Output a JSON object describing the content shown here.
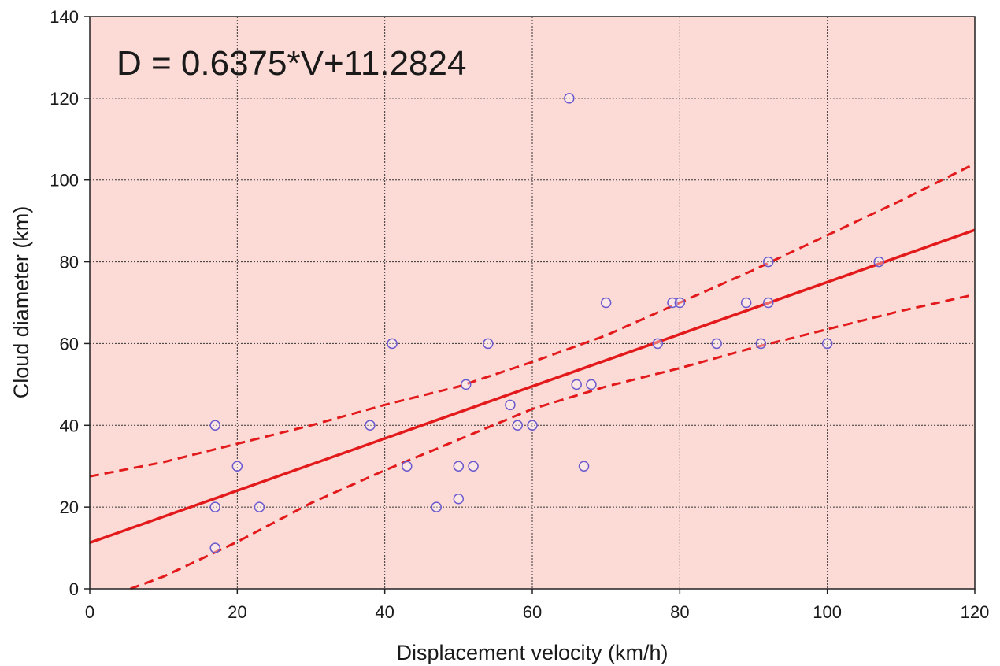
{
  "chart_data": {
    "type": "scatter",
    "title": "",
    "annotation": "D = 0.6375*V+11.2824",
    "xlabel": "Displacement velocity (km/h)",
    "ylabel": "Cloud diameter (km)",
    "xlim": [
      0,
      120
    ],
    "ylim": [
      0,
      140
    ],
    "xticks": [
      "0",
      "20",
      "40",
      "60",
      "80",
      "100",
      "120"
    ],
    "yticks": [
      "0",
      "20",
      "40",
      "60",
      "80",
      "100",
      "120",
      "140"
    ],
    "grid": true,
    "legend": "none",
    "colors": {
      "plot_background": "#fcdbd6",
      "regression_line": "#e31a1c",
      "marker_stroke": "#6a5acd",
      "grid": "#333333"
    },
    "points": [
      {
        "x": 17,
        "y": 40
      },
      {
        "x": 17,
        "y": 20
      },
      {
        "x": 17,
        "y": 10
      },
      {
        "x": 20,
        "y": 30
      },
      {
        "x": 23,
        "y": 20
      },
      {
        "x": 38,
        "y": 40
      },
      {
        "x": 41,
        "y": 60
      },
      {
        "x": 43,
        "y": 30
      },
      {
        "x": 47,
        "y": 20
      },
      {
        "x": 50,
        "y": 30
      },
      {
        "x": 50,
        "y": 22
      },
      {
        "x": 51,
        "y": 50
      },
      {
        "x": 52,
        "y": 30
      },
      {
        "x": 54,
        "y": 60
      },
      {
        "x": 57,
        "y": 45
      },
      {
        "x": 58,
        "y": 40
      },
      {
        "x": 60,
        "y": 40
      },
      {
        "x": 65,
        "y": 120
      },
      {
        "x": 66,
        "y": 50
      },
      {
        "x": 67,
        "y": 30
      },
      {
        "x": 68,
        "y": 50
      },
      {
        "x": 70,
        "y": 70
      },
      {
        "x": 77,
        "y": 60
      },
      {
        "x": 79,
        "y": 70
      },
      {
        "x": 80,
        "y": 70
      },
      {
        "x": 85,
        "y": 60
      },
      {
        "x": 89,
        "y": 70
      },
      {
        "x": 91,
        "y": 60
      },
      {
        "x": 92,
        "y": 80
      },
      {
        "x": 92,
        "y": 70
      },
      {
        "x": 100,
        "y": 60
      },
      {
        "x": 107,
        "y": 80
      }
    ],
    "regression": {
      "slope": 0.6375,
      "intercept": 11.2824
    },
    "confidence_upper": [
      [
        0,
        27.5
      ],
      [
        10,
        31
      ],
      [
        20,
        35.5
      ],
      [
        30,
        40
      ],
      [
        40,
        45
      ],
      [
        50,
        49.5
      ],
      [
        60,
        55.5
      ],
      [
        70,
        62
      ],
      [
        80,
        70
      ],
      [
        90,
        78
      ],
      [
        100,
        86.5
      ],
      [
        110,
        95
      ],
      [
        120,
        104
      ]
    ],
    "confidence_lower": [
      [
        5.5,
        0
      ],
      [
        10,
        3
      ],
      [
        20,
        11.5
      ],
      [
        30,
        21
      ],
      [
        40,
        29
      ],
      [
        50,
        36.5
      ],
      [
        60,
        44
      ],
      [
        70,
        49.5
      ],
      [
        80,
        54
      ],
      [
        90,
        59
      ],
      [
        100,
        63.5
      ],
      [
        110,
        68
      ],
      [
        120,
        72
      ]
    ]
  }
}
